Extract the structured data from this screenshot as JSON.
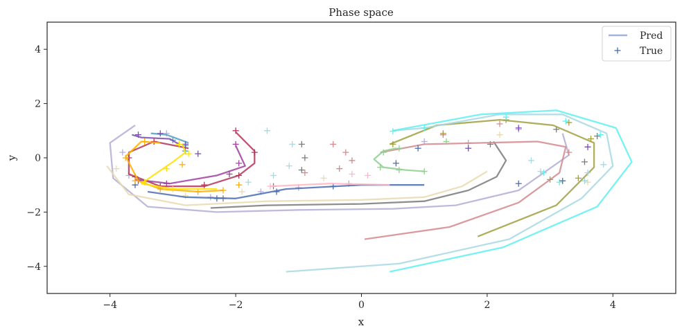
{
  "chart_data": {
    "type": "line",
    "title": "Phase space",
    "xlabel": "x",
    "ylabel": "y",
    "xlim": [
      -5,
      5
    ],
    "ylim": [
      -5,
      5
    ],
    "xticks": [
      -4,
      -2,
      0,
      2,
      4
    ],
    "yticks": [
      -4,
      -2,
      0,
      2,
      4
    ],
    "xtick_labels": [
      "−4",
      "−2",
      "0",
      "2",
      "4"
    ],
    "ytick_labels": [
      "−4",
      "−2",
      "0",
      "2",
      "4"
    ],
    "grid": false,
    "legend": {
      "placement": "top-right",
      "entries": [
        {
          "label": "Pred",
          "marker": "line",
          "color": "#9fb4d8"
        },
        {
          "label": "True",
          "marker": "+",
          "color": "#4a6db0"
        }
      ]
    },
    "series": [
      {
        "color": "#b3aed6",
        "pred": [
          [
            -3.6,
            1.2
          ],
          [
            -4.0,
            0.55
          ],
          [
            -3.95,
            -0.75
          ],
          [
            -3.4,
            -1.8
          ],
          [
            -2.3,
            -2.0
          ],
          [
            -1.0,
            -1.92
          ],
          [
            0.5,
            -1.88
          ],
          [
            1.5,
            -1.75
          ],
          [
            2.5,
            -1.2
          ],
          [
            3.3,
            0.1
          ],
          [
            3.2,
            0.9
          ]
        ],
        "true": [
          [
            -3.1,
            0.9
          ],
          [
            -3.8,
            0.2
          ],
          [
            -3.7,
            -0.65
          ],
          [
            -3.2,
            -1.1
          ],
          [
            -2.4,
            -1.45
          ],
          [
            -1.6,
            -1.25
          ],
          [
            -1.0,
            -1.1
          ],
          [
            -0.2,
            -0.95
          ],
          [
            1.0,
            0.6
          ],
          [
            1.7,
            0.55
          ],
          [
            2.5,
            1.05
          ]
        ]
      },
      {
        "color": "#e8d9b0",
        "pred": [
          [
            -4.05,
            -0.3
          ],
          [
            -3.7,
            -1.35
          ],
          [
            -2.8,
            -1.75
          ],
          [
            -1.5,
            -1.6
          ],
          [
            0.0,
            -1.55
          ],
          [
            1.0,
            -1.45
          ],
          [
            1.6,
            -1.05
          ],
          [
            2.0,
            -0.5
          ]
        ],
        "true": [
          [
            -3.9,
            -0.4
          ],
          [
            -3.6,
            -1.0
          ],
          [
            -2.8,
            -1.4
          ],
          [
            -1.9,
            -1.25
          ],
          [
            -0.6,
            -0.75
          ],
          [
            2.2,
            0.85
          ],
          [
            3.6,
            -0.9
          ]
        ]
      },
      {
        "color": "#7a7a7a",
        "pred": [
          [
            -2.4,
            -1.85
          ],
          [
            -1.5,
            -1.75
          ],
          [
            0.0,
            -1.7
          ],
          [
            1.0,
            -1.6
          ],
          [
            1.7,
            -1.2
          ],
          [
            2.15,
            -0.7
          ],
          [
            2.3,
            -0.1
          ],
          [
            2.1,
            0.6
          ]
        ],
        "true": [
          [
            -2.2,
            -1.5
          ],
          [
            -1.4,
            -1.05
          ],
          [
            -0.95,
            -0.45
          ],
          [
            -0.9,
            0.0
          ],
          [
            -0.95,
            0.5
          ],
          [
            2.05,
            0.5
          ],
          [
            3.1,
            1.05
          ],
          [
            3.75,
            0.8
          ],
          [
            3.55,
            -0.15
          ]
        ]
      },
      {
        "color": "#d48a8f",
        "pred": [
          [
            0.05,
            -3.0
          ],
          [
            1.4,
            -2.55
          ],
          [
            2.5,
            -1.65
          ],
          [
            3.15,
            -0.55
          ],
          [
            3.25,
            0.4
          ],
          [
            2.8,
            0.6
          ],
          [
            1.0,
            0.5
          ],
          [
            0.3,
            0.2
          ]
        ],
        "true": [
          [
            -0.45,
            0.5
          ],
          [
            -0.25,
            0.2
          ],
          [
            -0.15,
            -0.1
          ],
          [
            -0.35,
            -0.4
          ],
          [
            -0.9,
            -0.55
          ],
          [
            1.3,
            0.85
          ],
          [
            2.2,
            1.25
          ],
          [
            3.3,
            0.2
          ]
        ]
      },
      {
        "color": "#a0a040",
        "pred": [
          [
            1.85,
            -2.9
          ],
          [
            3.1,
            -1.75
          ],
          [
            3.7,
            -0.35
          ],
          [
            3.7,
            0.55
          ],
          [
            3.05,
            1.2
          ],
          [
            2.2,
            1.4
          ],
          [
            1.2,
            1.2
          ],
          [
            0.45,
            0.5
          ]
        ],
        "true": [
          [
            0.5,
            0.5
          ],
          [
            1.3,
            0.9
          ],
          [
            2.3,
            1.4
          ],
          [
            3.3,
            1.3
          ],
          [
            3.65,
            0.7
          ],
          [
            3.45,
            -0.75
          ],
          [
            3.0,
            -0.8
          ]
        ]
      },
      {
        "color": "#a8d8e2",
        "pred": [
          [
            -1.2,
            -4.2
          ],
          [
            0.6,
            -3.9
          ],
          [
            2.35,
            -3.0
          ],
          [
            3.5,
            -1.5
          ],
          [
            4.0,
            -0.3
          ],
          [
            3.9,
            0.9
          ],
          [
            3.2,
            1.6
          ],
          [
            2.2,
            1.6
          ],
          [
            1.0,
            1.1
          ],
          [
            0.5,
            1.0
          ]
        ],
        "true": [
          [
            -1.5,
            1.0
          ],
          [
            -1.1,
            0.5
          ],
          [
            -1.15,
            -0.3
          ],
          [
            -1.4,
            -0.65
          ],
          [
            -1.8,
            -0.9
          ],
          [
            2.7,
            -0.1
          ],
          [
            2.85,
            -0.5
          ],
          [
            3.6,
            -0.55
          ],
          [
            3.85,
            -0.25
          ]
        ]
      },
      {
        "color": "#5ff0f0",
        "pred": [
          [
            0.45,
            -4.2
          ],
          [
            2.25,
            -3.3
          ],
          [
            3.75,
            -1.8
          ],
          [
            4.3,
            -0.15
          ],
          [
            4.05,
            1.1
          ],
          [
            3.1,
            1.75
          ],
          [
            1.9,
            1.6
          ],
          [
            0.5,
            1.0
          ]
        ],
        "true": [
          [
            0.5,
            0.98
          ],
          [
            1.0,
            1.1
          ],
          [
            2.3,
            1.5
          ],
          [
            3.25,
            1.35
          ],
          [
            3.8,
            0.85
          ],
          [
            3.55,
            -0.85
          ],
          [
            3.15,
            -0.9
          ],
          [
            2.9,
            -0.55
          ]
        ]
      },
      {
        "color": "#55a0c0",
        "pred": [
          [
            -3.35,
            0.9
          ],
          [
            -3.1,
            0.85
          ],
          [
            -2.75,
            0.55
          ]
        ],
        "true": [
          [
            -3.0,
            0.65
          ],
          [
            -2.8,
            0.45
          ],
          [
            -2.8,
            0.25
          ]
        ]
      },
      {
        "color": "#7b4db0",
        "pred": [
          [
            -3.65,
            0.85
          ],
          [
            -3.5,
            0.75
          ],
          [
            -3.05,
            0.7
          ],
          [
            -2.9,
            0.5
          ]
        ],
        "true": [
          [
            -3.55,
            0.85
          ],
          [
            -3.2,
            0.9
          ],
          [
            -2.8,
            0.5
          ],
          [
            -2.6,
            0.15
          ],
          [
            1.7,
            0.35
          ],
          [
            2.5,
            1.1
          ],
          [
            3.6,
            0.4
          ]
        ]
      },
      {
        "color": "#4a6db0",
        "pred": [
          [
            -3.4,
            -1.25
          ],
          [
            -2.8,
            -1.45
          ],
          [
            -2.0,
            -1.5
          ],
          [
            -1.2,
            -1.15
          ],
          [
            0.0,
            -1.0
          ],
          [
            0.8,
            -1.0
          ],
          [
            1.0,
            -1.0
          ]
        ],
        "true": [
          [
            -3.6,
            -1.0
          ],
          [
            -2.3,
            -1.5
          ],
          [
            -1.35,
            -1.25
          ],
          [
            -0.45,
            -1.05
          ],
          [
            0.55,
            -0.2
          ],
          [
            0.9,
            0.35
          ],
          [
            2.5,
            -0.95
          ],
          [
            3.2,
            -0.85
          ]
        ]
      },
      {
        "color": "#b1365a",
        "pred": [
          [
            -2.75,
            0.35
          ],
          [
            -3.3,
            0.6
          ],
          [
            -3.7,
            0.2
          ],
          [
            -3.7,
            -0.6
          ],
          [
            -3.2,
            -1.05
          ],
          [
            -2.5,
            -1.05
          ],
          [
            -1.95,
            -0.65
          ],
          [
            -1.7,
            -0.2
          ],
          [
            -1.7,
            0.25
          ],
          [
            -2.0,
            0.95
          ]
        ],
        "true": [
          [
            -3.3,
            0.6
          ],
          [
            -3.7,
            0.0
          ],
          [
            -3.6,
            -0.7
          ],
          [
            -3.2,
            -1.05
          ],
          [
            -2.5,
            -1.0
          ],
          [
            -1.95,
            -0.65
          ],
          [
            -1.7,
            0.2
          ],
          [
            -2.0,
            1.0
          ]
        ]
      },
      {
        "color": "#a040a0",
        "pred": [
          [
            -2.0,
            0.45
          ],
          [
            -1.85,
            -0.3
          ],
          [
            -2.3,
            -0.65
          ],
          [
            -3.05,
            -0.95
          ],
          [
            -3.6,
            -0.8
          ]
        ],
        "true": [
          [
            -2.0,
            0.5
          ],
          [
            -1.95,
            -0.2
          ],
          [
            -2.1,
            -0.6
          ],
          [
            -3.1,
            -0.95
          ],
          [
            -3.55,
            -0.85
          ]
        ]
      },
      {
        "color": "#ffb000",
        "pred": [
          [
            -3.2,
            0.55
          ],
          [
            -3.5,
            0.6
          ],
          [
            -3.75,
            0.05
          ],
          [
            -3.55,
            -0.85
          ],
          [
            -3.2,
            -1.15
          ],
          [
            -2.6,
            -1.25
          ],
          [
            -2.2,
            -1.2
          ]
        ],
        "true": [
          [
            -3.45,
            0.6
          ],
          [
            -3.75,
            0.0
          ],
          [
            -3.6,
            -0.85
          ],
          [
            -3.2,
            -1.15
          ],
          [
            -2.6,
            -1.25
          ],
          [
            -2.2,
            -1.2
          ],
          [
            -1.95,
            -1.0
          ],
          [
            -2.85,
            -0.25
          ]
        ]
      },
      {
        "color": "#ffe000",
        "pred": [
          [
            -2.85,
            0.5
          ],
          [
            -2.8,
            0.2
          ],
          [
            -3.0,
            -0.15
          ],
          [
            -3.5,
            -0.95
          ],
          [
            -3.0,
            -1.15
          ],
          [
            -2.3,
            -1.15
          ]
        ],
        "true": [
          [
            -2.9,
            0.5
          ],
          [
            -2.75,
            0.15
          ],
          [
            -3.1,
            -0.4
          ],
          [
            -3.45,
            -0.9
          ],
          [
            -3.0,
            -1.15
          ]
        ]
      },
      {
        "color": "#8fd08f",
        "pred": [
          [
            1.0,
            -0.5
          ],
          [
            0.7,
            -0.45
          ],
          [
            0.35,
            -0.35
          ],
          [
            0.2,
            -0.05
          ],
          [
            0.35,
            0.25
          ],
          [
            0.55,
            0.35
          ]
        ],
        "true": [
          [
            1.0,
            -0.5
          ],
          [
            0.6,
            -0.45
          ],
          [
            0.3,
            -0.35
          ],
          [
            0.35,
            0.2
          ],
          [
            0.6,
            0.35
          ],
          [
            1.35,
            0.6
          ]
        ]
      },
      {
        "color": "#ffb6c6",
        "pred": [
          [
            -1.45,
            -1.05
          ],
          [
            -0.5,
            -0.95
          ],
          [
            0.45,
            -1.0
          ]
        ],
        "true": [
          [
            -0.15,
            -0.6
          ],
          [
            0.1,
            -0.65
          ],
          [
            -1.45,
            -1.05
          ]
        ]
      }
    ]
  }
}
